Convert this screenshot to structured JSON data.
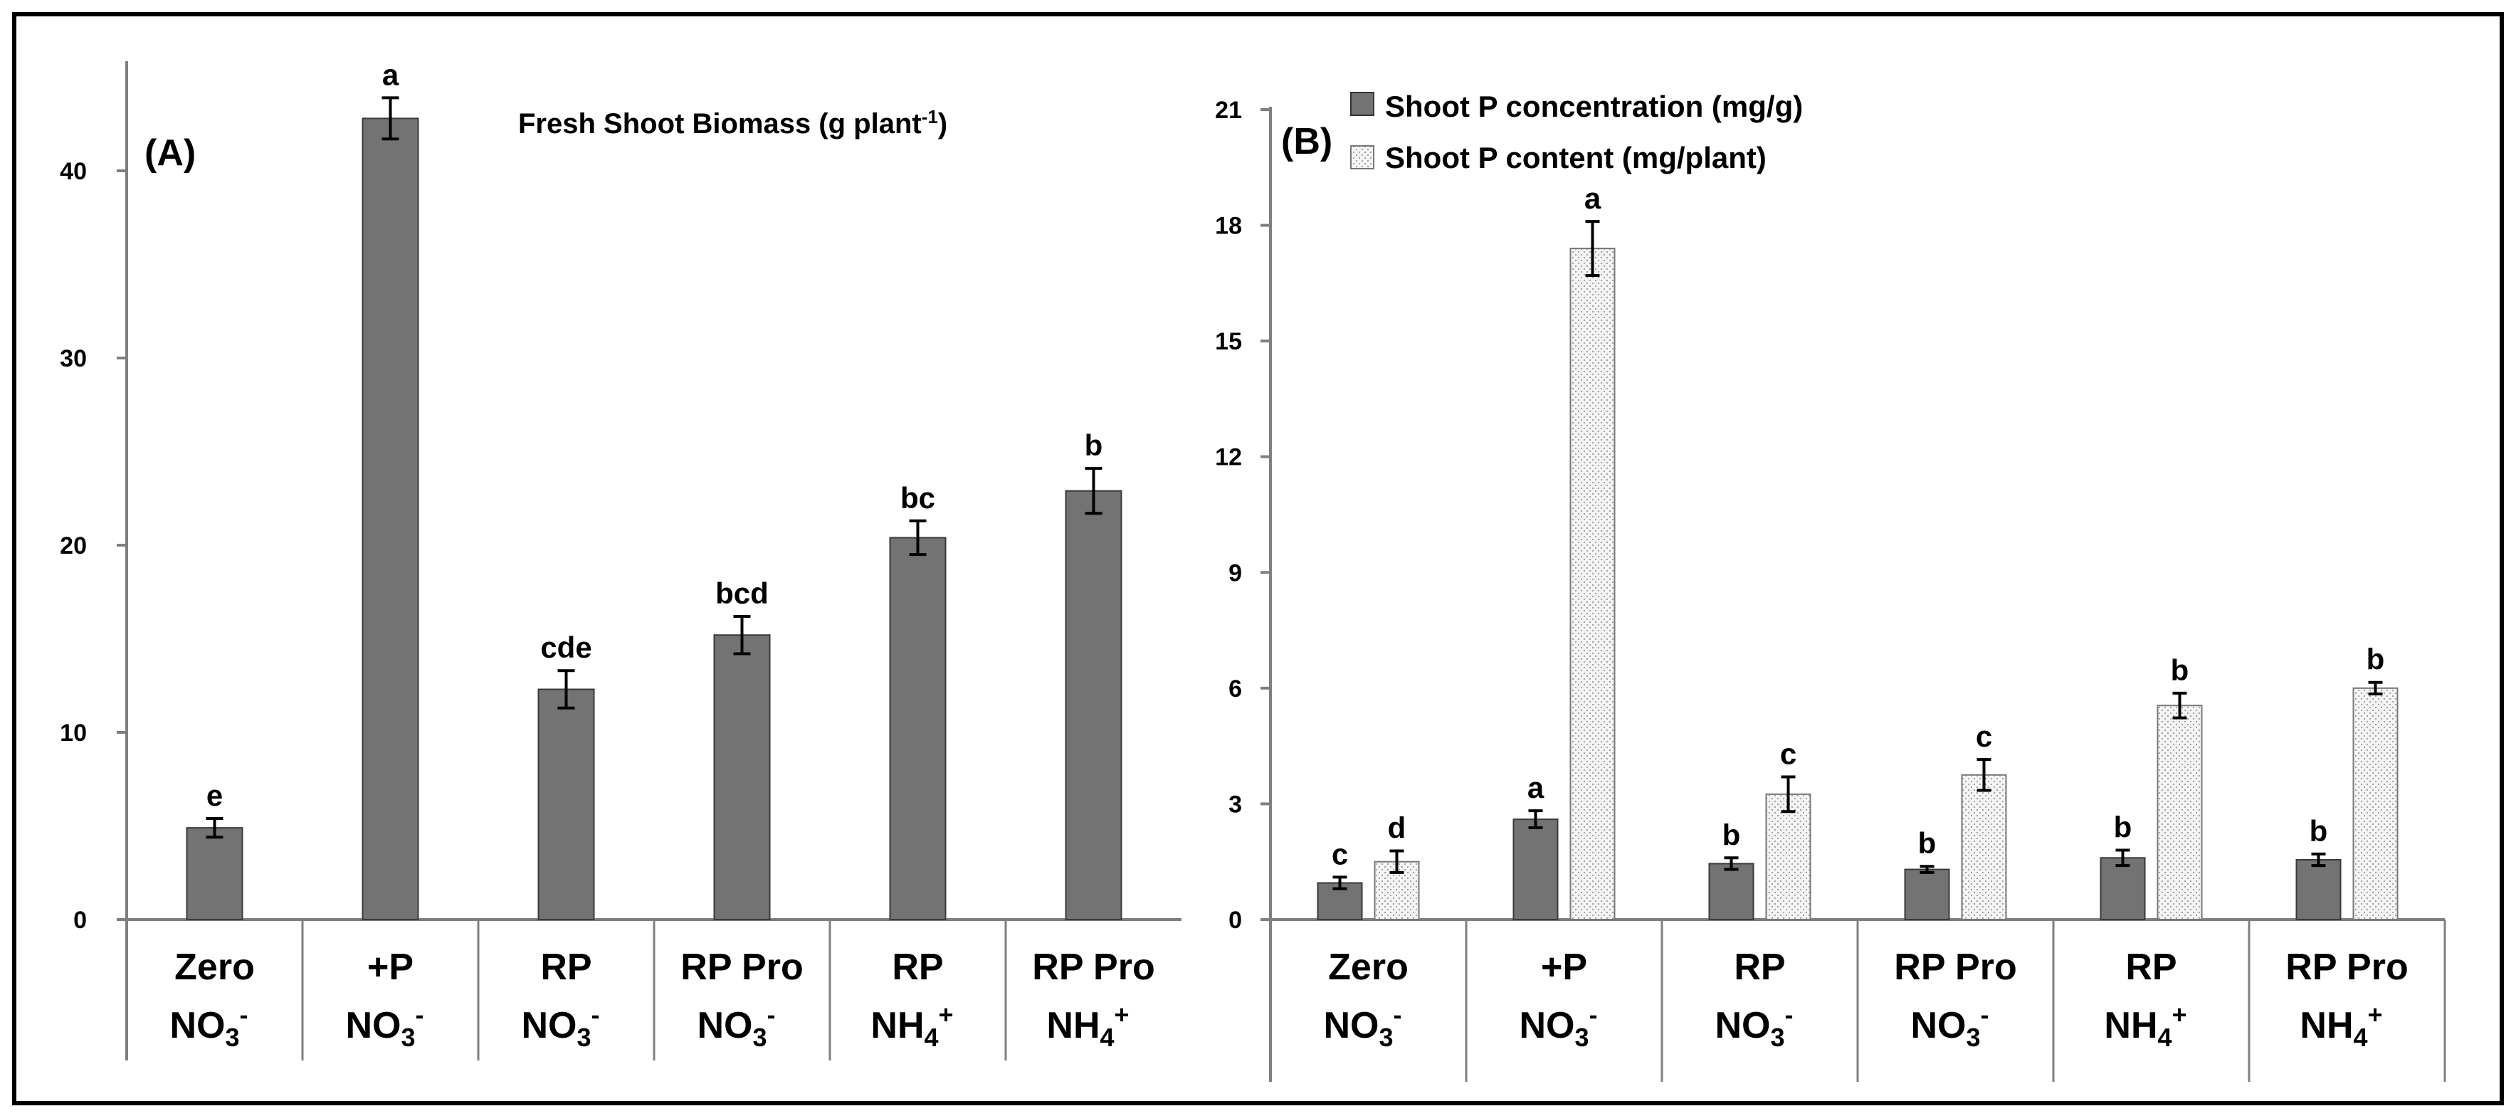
{
  "colors": {
    "dark_bar": "#737373",
    "light_bar": "#f4f4f4",
    "axis": "#7f7f7f",
    "frame": "#000000"
  },
  "chart_data": [
    {
      "type": "bar",
      "panel_label": "(A)",
      "title": {
        "main": "Fresh Shoot Biomass  (g plant",
        "sup": "-1",
        "close": ")"
      },
      "ylim": [
        0,
        45
      ],
      "yticks": [
        "0",
        "10",
        "20",
        "30",
        "40"
      ],
      "categories": [
        {
          "line1": "Zero",
          "base": "NO",
          "sub": "3",
          "sup": "-"
        },
        {
          "line1": "+P",
          "base": "NO",
          "sub": "3",
          "sup": "-"
        },
        {
          "line1": "RP",
          "base": "NO",
          "sub": "3",
          "sup": "-"
        },
        {
          "line1": "RP Pro",
          "base": "NO",
          "sub": "3",
          "sup": "-"
        },
        {
          "line1": "RP",
          "base": "NH",
          "sub": "4",
          "sup": "+"
        },
        {
          "line1": "RP Pro",
          "base": "NH",
          "sub": "4",
          "sup": "+"
        }
      ],
      "series": [
        {
          "name": "Fresh Shoot Biomass",
          "values": [
            4.9,
            42.8,
            12.3,
            15.2,
            20.4,
            22.9
          ],
          "errors": [
            0.5,
            1.1,
            1.0,
            1.0,
            0.9,
            1.2
          ],
          "letters": [
            "e",
            "a",
            "cde",
            "bcd",
            "bc",
            "b"
          ]
        }
      ]
    },
    {
      "type": "bar",
      "panel_label": "(B)",
      "ylim": [
        0,
        21
      ],
      "yticks": [
        "0",
        "3",
        "6",
        "9",
        "12",
        "15",
        "18",
        "21"
      ],
      "categories": [
        {
          "line1": "Zero",
          "base": "NO",
          "sub": "3",
          "sup": "-"
        },
        {
          "line1": "+P",
          "base": "NO",
          "sub": "3",
          "sup": "-"
        },
        {
          "line1": "RP",
          "base": "NO",
          "sub": "3",
          "sup": "-"
        },
        {
          "line1": "RP Pro",
          "base": "NO",
          "sub": "3",
          "sup": "-"
        },
        {
          "line1": "RP",
          "base": "NH",
          "sub": "4",
          "sup": "+"
        },
        {
          "line1": "RP Pro",
          "base": "NH",
          "sub": "4",
          "sup": "+"
        }
      ],
      "series": [
        {
          "name": "Shoot P concentration (mg/g)",
          "values": [
            0.95,
            2.6,
            1.45,
            1.3,
            1.6,
            1.55
          ],
          "errors": [
            0.15,
            0.22,
            0.15,
            0.08,
            0.2,
            0.15
          ],
          "letters": [
            "c",
            "a",
            "b",
            "b",
            "b",
            "b"
          ]
        },
        {
          "name": "Shoot P content (mg/plant)",
          "values": [
            1.5,
            17.4,
            3.25,
            3.75,
            5.55,
            6.0
          ],
          "errors": [
            0.28,
            0.7,
            0.45,
            0.4,
            0.32,
            0.15
          ],
          "letters": [
            "d",
            "a",
            "c",
            "c",
            "b",
            "b"
          ]
        }
      ]
    }
  ]
}
